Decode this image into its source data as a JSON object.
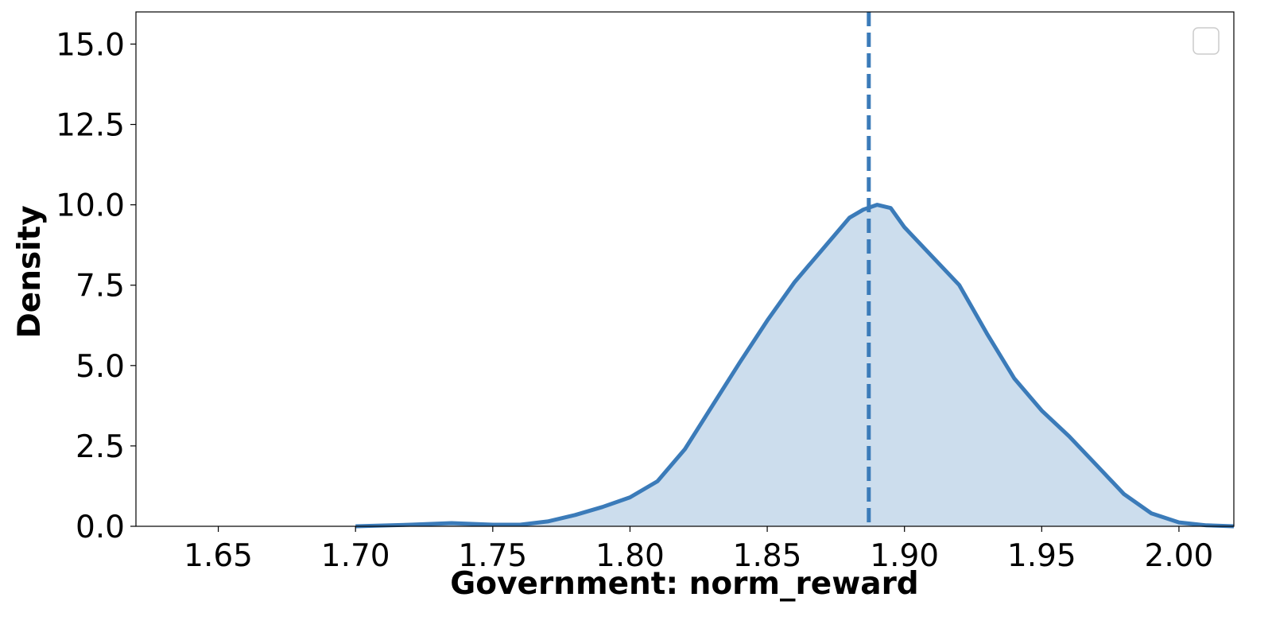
{
  "chart_data": {
    "type": "kde",
    "xlabel": "Government: norm_reward",
    "ylabel": "Density",
    "x": [
      1.7,
      1.72,
      1.735,
      1.75,
      1.76,
      1.77,
      1.78,
      1.79,
      1.8,
      1.81,
      1.82,
      1.83,
      1.84,
      1.85,
      1.86,
      1.87,
      1.88,
      1.885,
      1.89,
      1.895,
      1.9,
      1.91,
      1.92,
      1.93,
      1.94,
      1.95,
      1.96,
      1.97,
      1.98,
      1.99,
      2.0,
      2.01,
      2.02
    ],
    "series": [
      {
        "color": "#3b7bb9",
        "values": [
          0,
          0.05,
          0.1,
          0.05,
          0.05,
          0.15,
          0.35,
          0.6,
          0.9,
          1.4,
          2.4,
          3.75,
          5.1,
          6.4,
          7.6,
          8.6,
          9.6,
          9.85,
          10.0,
          9.9,
          9.3,
          8.4,
          7.5,
          6.0,
          4.6,
          3.6,
          2.8,
          1.9,
          1.0,
          0.4,
          0.12,
          0.03,
          0.0
        ]
      }
    ],
    "mean_line": {
      "x": 1.887,
      "color": "#3b7bb9"
    },
    "xlim": [
      1.62,
      2.02
    ],
    "ylim": [
      0,
      16
    ],
    "xticks": [
      1.65,
      {
        "value": 1.7,
        "label": "1.70"
      },
      1.75,
      {
        "value": 1.8,
        "label": "1.80"
      },
      1.85,
      {
        "value": 1.9,
        "label": "1.90"
      },
      1.95,
      {
        "value": 2.0,
        "label": "2.00"
      }
    ],
    "yticks": [
      {
        "value": 0,
        "label": "0.0"
      },
      {
        "value": 2.5,
        "label": "2.5"
      },
      {
        "value": 5,
        "label": "5.0"
      },
      {
        "value": 7.5,
        "label": "7.5"
      },
      {
        "value": 10,
        "label": "10.0"
      },
      {
        "value": 12.5,
        "label": "12.5"
      },
      {
        "value": 15,
        "label": "15.0"
      }
    ]
  }
}
